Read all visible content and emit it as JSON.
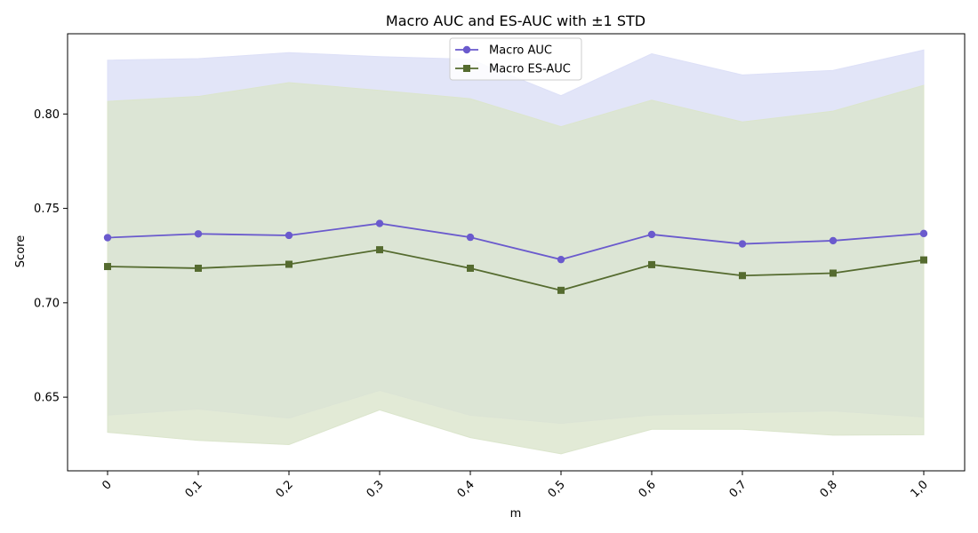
{
  "chart_data": {
    "type": "line",
    "title": "Macro AUC and ES-AUC with ±1 STD",
    "xlabel": "m",
    "ylabel": "Score",
    "categories": [
      "0",
      "0,1",
      "0,2",
      "0,3",
      "0,4",
      "0,5",
      "0,6",
      "0,7",
      "0,8",
      "1,0"
    ],
    "ylim": [
      0.611,
      0.8425
    ],
    "yticks": [
      0.65,
      0.7,
      0.75,
      0.8
    ],
    "ytick_labels": [
      "0.65",
      "0.70",
      "0.75",
      "0.80"
    ],
    "grid": false,
    "legend_position": "upper center",
    "series": [
      {
        "name": "Macro AUC",
        "color": "#6a5acd",
        "band_color": "#dde0f7",
        "marker": "circle",
        "values": [
          0.7345,
          0.7365,
          0.7357,
          0.742,
          0.7347,
          0.7229,
          0.7362,
          0.7312,
          0.7329,
          0.7367
        ],
        "upper": [
          0.8285,
          0.8293,
          0.8325,
          0.8304,
          0.829,
          0.8097,
          0.8319,
          0.8207,
          0.8231,
          0.8339
        ],
        "lower": [
          0.6405,
          0.6437,
          0.6389,
          0.6536,
          0.6404,
          0.6361,
          0.6405,
          0.6417,
          0.6427,
          0.6395
        ]
      },
      {
        "name": "Macro ES-AUC",
        "color": "#556b2f",
        "band_color": "#dbe5cc",
        "marker": "square",
        "values": [
          0.7192,
          0.7183,
          0.7204,
          0.7281,
          0.7183,
          0.7066,
          0.7202,
          0.7144,
          0.7157,
          0.7227
        ],
        "upper": [
          0.8067,
          0.8093,
          0.8166,
          0.8125,
          0.8081,
          0.7933,
          0.8073,
          0.7958,
          0.8015,
          0.8152
        ],
        "lower": [
          0.6314,
          0.6271,
          0.6249,
          0.6433,
          0.6286,
          0.62,
          0.633,
          0.633,
          0.6299,
          0.6301
        ]
      }
    ]
  }
}
